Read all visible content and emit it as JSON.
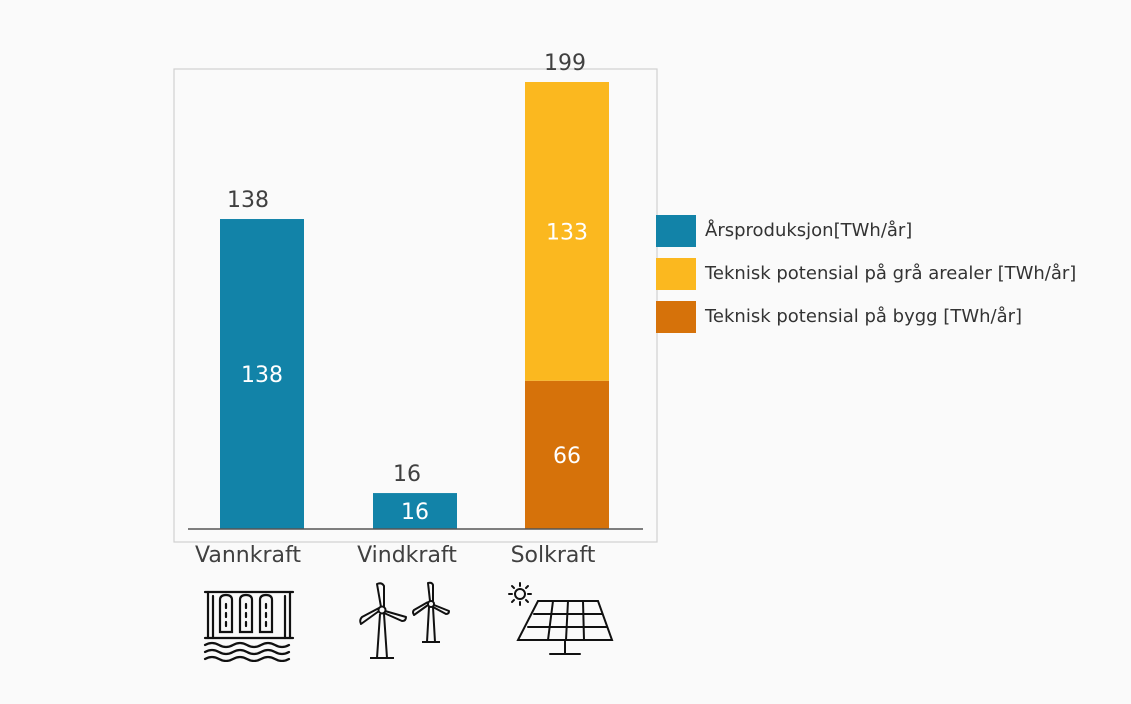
{
  "chart_data": {
    "type": "bar",
    "stacked": true,
    "categories": [
      "Vannkraft",
      "Vindkraft",
      "Solkraft"
    ],
    "series": [
      {
        "name": "Årsproduksjon[TWh/år]",
        "color": "#1283a8",
        "values": [
          138,
          16,
          null
        ]
      },
      {
        "name": "Teknisk potensial på bygg [TWh/år]",
        "color": "#d6720a",
        "values": [
          null,
          null,
          66
        ]
      },
      {
        "name": "Teknisk potensial på grå arealer [TWh/år]",
        "color": "#fbb81f",
        "values": [
          null,
          null,
          133
        ]
      }
    ],
    "totals": [
      138,
      16,
      199
    ],
    "ylim": [
      0,
      199
    ],
    "grid": false,
    "legend_position": "right",
    "category_icons": [
      "hydropower-dam-icon",
      "wind-turbine-icon",
      "solar-panel-icon"
    ]
  },
  "legend": [
    {
      "label": "Årsproduksjon[TWh/år]",
      "color": "#1283a8"
    },
    {
      "label": "Teknisk potensial på grå arealer [TWh/år]",
      "color": "#fbb81f"
    },
    {
      "label": "Teknisk potensial på bygg [TWh/år]",
      "color": "#d6720a"
    }
  ]
}
